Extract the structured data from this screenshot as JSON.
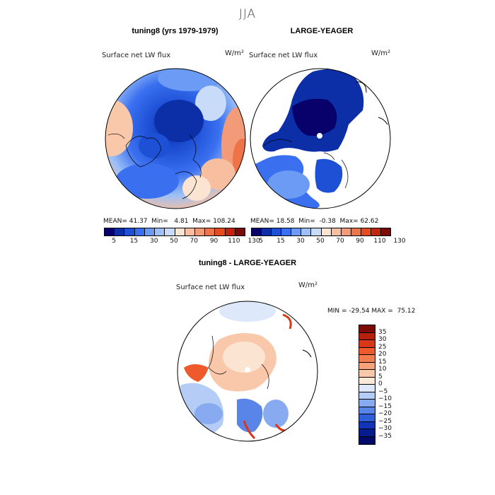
{
  "title": "JJA",
  "panels": [
    {
      "title": "tuning8 (yrs 1979-1979)",
      "variable": "Surface net LW flux",
      "units": "W/m²",
      "stats": {
        "mean_label": "MEAN=",
        "mean": "41.37",
        "min_label": "Min=",
        "min": "4.81",
        "max_label": "Max=",
        "max": "108.24"
      }
    },
    {
      "title": "LARGE-YEAGER",
      "variable": "Surface net LW flux",
      "units": "W/m²",
      "stats": {
        "mean_label": "MEAN=",
        "mean": "18.58",
        "min_label": "Min=",
        "min": "-0.38",
        "max_label": "Max=",
        "max": "62.62"
      }
    },
    {
      "title": "tuning8 - LARGE-YEAGER",
      "variable": "Surface net LW flux",
      "units": "W/m²",
      "stats": {
        "min_label": "MIN =",
        "min": "-29.54",
        "max_label": "MAX =",
        "max": "75.12"
      }
    }
  ],
  "abs_colorbar": {
    "colors": [
      "#08006b",
      "#0c2fa8",
      "#1e50d6",
      "#3a70f0",
      "#6b9bf5",
      "#9cc0f7",
      "#c8dcfa",
      "#fbe4d2",
      "#f7bfa0",
      "#f39a78",
      "#ee7348",
      "#e54b1f",
      "#c2240f",
      "#7d0b05"
    ],
    "tick_labels": [
      "5",
      "15",
      "30",
      "50",
      "70",
      "90",
      "110",
      "130"
    ]
  },
  "diff_colorbar": {
    "colors": [
      "#7d0b05",
      "#b8200e",
      "#d9371a",
      "#ef5a2c",
      "#f47d50",
      "#f7a27c",
      "#f9c7a9",
      "#fce8d8",
      "#dde9fb",
      "#b5cdf6",
      "#88aaf0",
      "#5a85e8",
      "#2e5ed8",
      "#1134b8",
      "#061c8e",
      "#020a6a"
    ],
    "tick_labels": [
      "35",
      "30",
      "25",
      "20",
      "15",
      "10",
      "5",
      "0",
      "−5",
      "−10",
      "−15",
      "−20",
      "−25",
      "−30",
      "−35"
    ]
  }
}
